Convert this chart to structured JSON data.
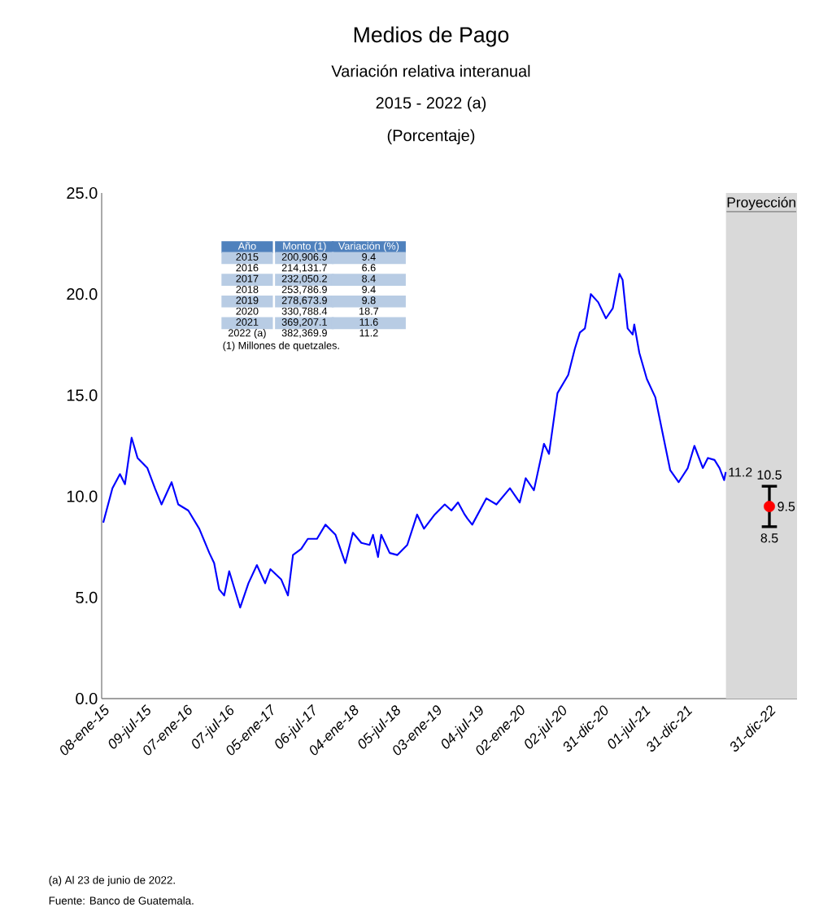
{
  "chart_data": {
    "type": "line",
    "title": "Medios de Pago",
    "subtitle": "Variación relativa interanual",
    "xlim": [
      "2015-01-01",
      "2023-05-01"
    ],
    "ylim": [
      0,
      25
    ],
    "xticks": [
      {
        "value": "2015-01-08",
        "label": "08-ene-15"
      },
      {
        "value": "2015-07-09",
        "label": "09-jul-15"
      },
      {
        "value": "2016-01-07",
        "label": "07-ene-16"
      },
      {
        "value": "2016-07-07",
        "label": "07-jul-16"
      },
      {
        "value": "2017-01-05",
        "label": "05-ene-17"
      },
      {
        "value": "2017-07-06",
        "label": "06-jul-17"
      },
      {
        "value": "2018-01-04",
        "label": "04-ene-18"
      },
      {
        "value": "2018-07-05",
        "label": "05-jul-18"
      },
      {
        "value": "2019-01-03",
        "label": "03-ene-19"
      },
      {
        "value": "2019-07-04",
        "label": "04-jul-19"
      },
      {
        "value": "2020-01-02",
        "label": "02-ene-20"
      },
      {
        "value": "2020-07-02",
        "label": "02-jul-20"
      },
      {
        "value": "2020-12-31",
        "label": "31-dic-20"
      },
      {
        "value": "2021-07-01",
        "label": "01-jul-21"
      },
      {
        "value": "2021-12-31",
        "label": "31-dic-21"
      },
      {
        "value": "2022-12-31",
        "label": "31-dic-22"
      }
    ],
    "yticks": [
      {
        "value": 0,
        "label": "0.0"
      },
      {
        "value": 5,
        "label": "5.0"
      },
      {
        "value": 10,
        "label": "10.0"
      },
      {
        "value": 15,
        "label": "15.0"
      },
      {
        "value": 20,
        "label": "20.0"
      },
      {
        "value": 25,
        "label": "25.0"
      }
    ],
    "grid": false,
    "series": [
      {
        "color": "#0000ff",
        "line_style": "solid",
        "x": [
          "2015-01-08",
          "2015-02-17",
          "2015-03-22",
          "2015-04-13",
          "2015-05-12",
          "2015-06-07",
          "2015-07-20",
          "2015-08-22",
          "2015-09-20",
          "2015-11-03",
          "2015-12-02",
          "2016-01-15",
          "2016-03-03",
          "2016-04-16",
          "2016-05-07",
          "2016-05-29",
          "2016-06-20",
          "2016-07-12",
          "2016-08-29",
          "2016-10-04",
          "2016-11-10",
          "2016-12-16",
          "2017-01-08",
          "2017-02-24",
          "2017-03-26",
          "2017-04-17",
          "2017-05-23",
          "2017-06-21",
          "2017-07-31",
          "2017-09-06",
          "2017-10-20",
          "2017-12-02",
          "2018-01-04",
          "2018-02-10",
          "2018-03-18",
          "2018-04-02",
          "2018-04-24",
          "2018-05-08",
          "2018-06-14",
          "2018-07-17",
          "2018-08-30",
          "2018-10-12",
          "2018-11-11",
          "2018-12-28",
          "2019-02-10",
          "2019-03-11",
          "2019-04-09",
          "2019-05-08",
          "2019-05-20",
          "2019-06-10",
          "2019-08-11",
          "2019-09-24",
          "2019-11-22",
          "2020-01-04",
          "2020-01-30",
          "2020-03-06",
          "2020-04-19",
          "2020-05-11",
          "2020-06-17",
          "2020-08-03",
          "2020-09-01",
          "2020-09-23",
          "2020-10-15",
          "2020-11-10",
          "2020-12-12",
          "2021-01-15",
          "2021-02-14",
          "2021-03-15",
          "2021-03-29",
          "2021-04-20",
          "2021-05-12",
          "2021-05-19",
          "2021-06-10",
          "2021-07-13",
          "2021-08-19",
          "2021-09-24",
          "2021-10-23",
          "2021-11-29",
          "2022-01-08",
          "2022-02-06",
          "2022-03-15",
          "2022-04-06",
          "2022-05-05",
          "2022-05-27",
          "2022-06-16",
          "2022-06-23"
        ],
        "values": [
          8.7,
          10.4,
          11.1,
          10.6,
          12.9,
          11.9,
          11.4,
          10.4,
          9.6,
          10.7,
          9.6,
          9.3,
          8.4,
          7.2,
          6.7,
          5.4,
          5.1,
          6.3,
          4.5,
          5.7,
          6.6,
          5.7,
          6.4,
          5.9,
          5.1,
          7.1,
          7.4,
          7.9,
          7.9,
          8.6,
          8.1,
          6.7,
          8.2,
          7.7,
          7.6,
          8.1,
          7.0,
          8.1,
          7.2,
          7.1,
          7.6,
          9.1,
          8.4,
          9.1,
          9.6,
          9.3,
          9.7,
          9.1,
          8.9,
          8.6,
          9.9,
          9.6,
          10.4,
          9.7,
          10.9,
          10.3,
          12.6,
          12.1,
          15.1,
          16.0,
          17.3,
          18.1,
          18.3,
          20.0,
          19.6,
          18.8,
          19.3,
          21.0,
          20.7,
          18.3,
          18.0,
          18.5,
          17.1,
          15.8,
          14.9,
          12.9,
          11.3,
          10.7,
          11.4,
          12.5,
          11.4,
          11.9,
          11.8,
          11.4,
          10.8,
          11.2
        ]
      },
      {
        "type": "scatter",
        "color": "#ff0000",
        "marker": "circle",
        "x": [
          "2022-12-31"
        ],
        "values": [
          9.5
        ],
        "errors": [
          [
            8.5,
            10.5
          ]
        ]
      }
    ],
    "bands": [
      {
        "axis": "x",
        "from": "2022-06-24",
        "to": "2023-05-01",
        "label": "Proyección",
        "color": "#d9d9d9"
      }
    ],
    "annotations": [
      "2015 - 2022 (a)",
      "(Porcentaje)",
      "Año",
      "Monto (1)",
      "Variación (%)",
      "2015",
      "200,906.9",
      "9.4",
      "2016",
      "214,131.7",
      "6.6",
      "2017",
      "232,050.2",
      "8.4",
      "2018",
      "253,786.9",
      "9.4",
      "2019",
      "278,673.9",
      "9.8",
      "2020",
      "330,788.4",
      "18.7",
      "2021",
      "369,207.1",
      "11.6",
      "2022 (a)",
      "382,369.9",
      "11.2",
      "(1) Millones de quetzales.",
      "(a) Al 23 de junio de 2022.",
      "Fuente: Banco de Guatemala.",
      {
        "text": "11.2",
        "x": "2022-06-23",
        "y": 11.2
      },
      {
        "text": "10.5",
        "x": "2022-12-31",
        "y": 10.5
      },
      {
        "text": "9.5",
        "x": "2022-12-31",
        "y": 9.5
      },
      {
        "text": "8.5",
        "x": "2022-12-31",
        "y": 8.5
      }
    ]
  }
}
